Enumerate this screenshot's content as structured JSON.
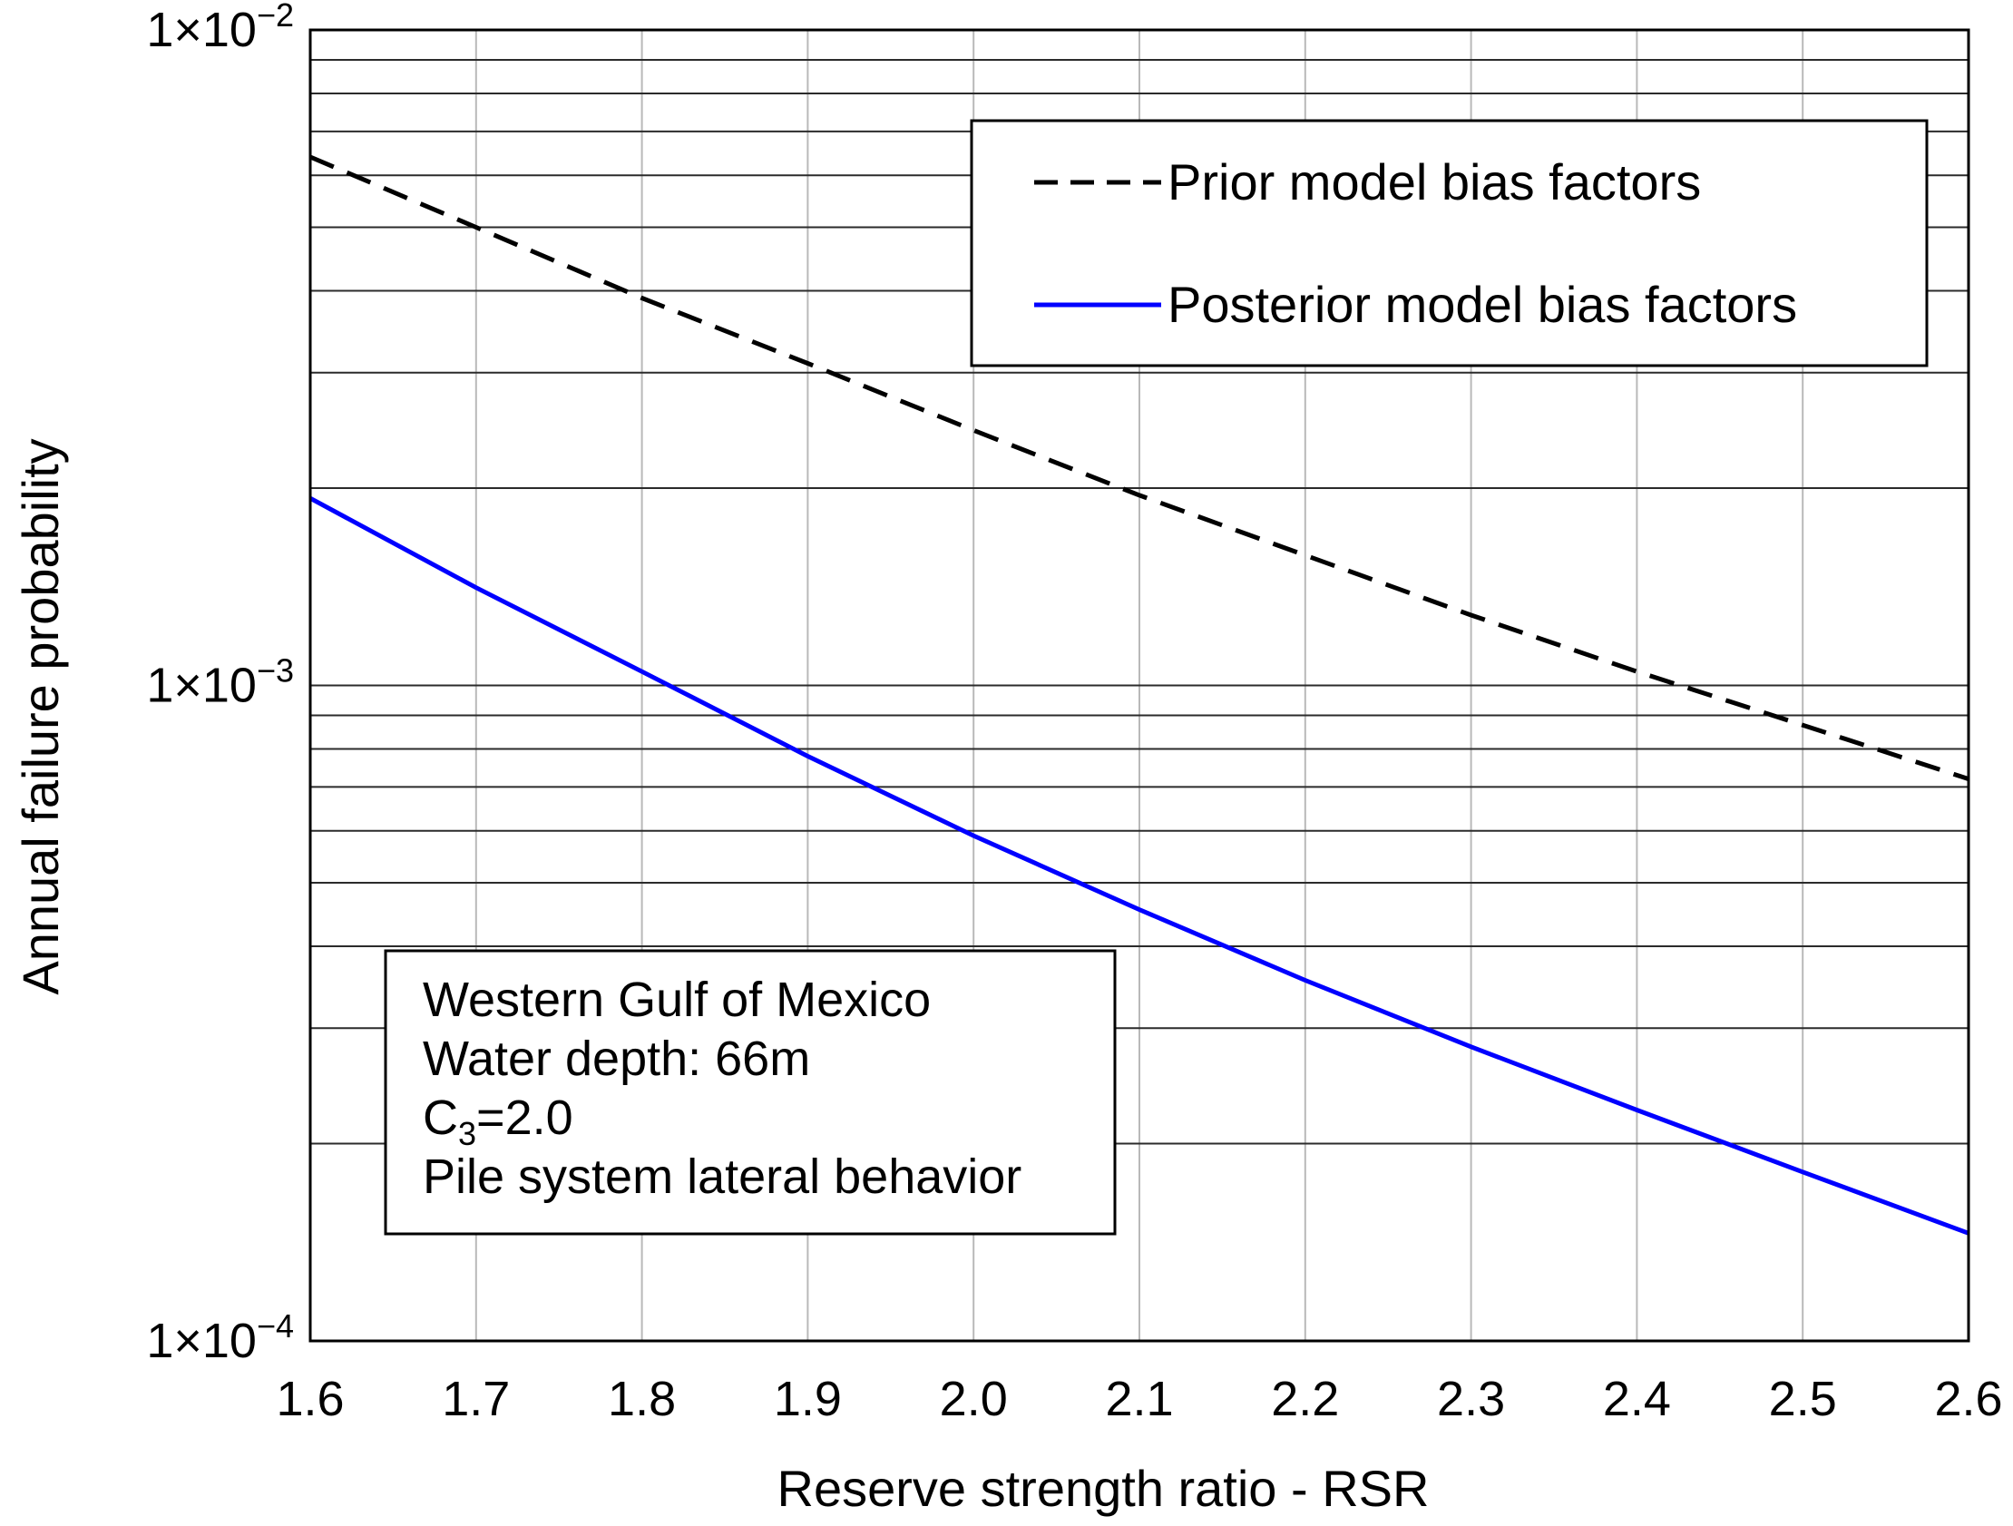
{
  "chart_data": {
    "type": "line",
    "title": "",
    "xlabel": "Reserve strength ratio - RSR",
    "ylabel": "Annual failure probability",
    "xlim": [
      1.6,
      2.6
    ],
    "ylim": [
      0.0001,
      0.01
    ],
    "yscale": "log",
    "x_ticks": [
      1.6,
      1.7,
      1.8,
      1.9,
      2.0,
      2.1,
      2.2,
      2.3,
      2.4,
      2.5,
      2.6
    ],
    "x_tick_labels": [
      "1.6",
      "1.7",
      "1.8",
      "1.9",
      "2.0",
      "2.1",
      "2.2",
      "2.3",
      "2.4",
      "2.5",
      "2.6"
    ],
    "y_tick_labels": [
      {
        "value": 0.01,
        "mantissa": "1×10",
        "exponent": "−2"
      },
      {
        "value": 0.001,
        "mantissa": "1×10",
        "exponent": "−3"
      },
      {
        "value": 0.0001,
        "mantissa": "1×10",
        "exponent": "−4"
      }
    ],
    "grid": true,
    "series": [
      {
        "name": "Prior model bias factors",
        "style": "dashed",
        "color": "#000000",
        "x": [
          1.6,
          1.7,
          1.8,
          1.9,
          2.0,
          2.1,
          2.2,
          2.3,
          2.4,
          2.5,
          2.6
        ],
        "y": [
          0.0064,
          0.005,
          0.0039,
          0.0031,
          0.00245,
          0.00195,
          0.00158,
          0.00128,
          0.00105,
          0.00087,
          0.00072
        ]
      },
      {
        "name": "Posterior model bias factors",
        "style": "solid",
        "color": "#0000ff",
        "x": [
          1.6,
          1.7,
          1.8,
          1.9,
          2.0,
          2.1,
          2.2,
          2.3,
          2.4,
          2.5,
          2.6
        ],
        "y": [
          0.00193,
          0.00141,
          0.00105,
          0.00078,
          0.00059,
          0.000455,
          0.000355,
          0.000281,
          0.000225,
          0.000181,
          0.000146
        ]
      }
    ],
    "legend": {
      "position": "top-right"
    },
    "annotation": {
      "line1": "Western Gulf of Mexico",
      "line2": "Water depth:  66m",
      "line3_prefix": "C",
      "line3_sub": "3",
      "line3_suffix": "=2.0",
      "line4": "Pile system lateral behavior"
    }
  }
}
